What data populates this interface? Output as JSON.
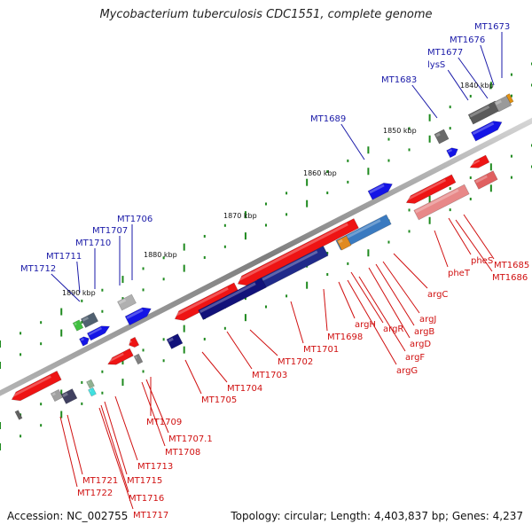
{
  "header": {
    "title": "Mycobacterium tuberculosis CDC1551, complete genome"
  },
  "footer": {
    "accession": "Accession: NC_002755",
    "topology": "Topology: circular; Length: 4,403,837 bp; Genes: 4,237"
  },
  "colors": {
    "forward_label": "#1a1aa8",
    "reverse_label": "#d01010",
    "forward_gene": "#1010e0",
    "reverse_gene": "#ee1010",
    "backbone": "#8a8a8a",
    "tick": "#1f8a1f"
  },
  "scale_labels": [
    "1840 kbp",
    "1850 kbp",
    "1860 kbp",
    "1870 kbp",
    "1880 kbp",
    "1890 kbp"
  ],
  "forward_labels": [
    "MT1673",
    "MT1676",
    "MT1677",
    "lysS",
    "MT1683",
    "MT1689",
    "MT1706",
    "MT1707",
    "MT1710",
    "MT1711",
    "MT1712"
  ],
  "reverse_labels": [
    "MT1685",
    "MT1686",
    "pheS",
    "pheT",
    "argC",
    "argJ",
    "argB",
    "argD",
    "argR",
    "argF",
    "argG",
    "argH",
    "MT1698",
    "MT1701",
    "MT1702",
    "MT1703",
    "MT1704",
    "MT1705",
    "MT1709",
    "MT1707.1",
    "MT1708",
    "MT1713",
    "MT1715",
    "MT1716",
    "MT1717",
    "MT1721",
    "MT1722"
  ]
}
